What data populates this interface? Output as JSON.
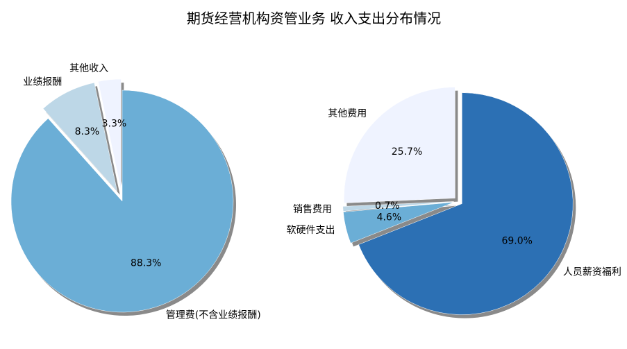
{
  "title": "期货经营机构资管业务 收入支出分布情况",
  "chart_data": [
    {
      "type": "pie",
      "labels": [
        "管理费(不含业绩报酬)",
        "业绩报酬",
        "其他收入"
      ],
      "values": [
        88.3,
        8.3,
        3.3
      ],
      "value_labels": [
        "88.3%",
        "8.3%",
        "3.3%"
      ],
      "colors": [
        "#6baed6",
        "#bdd7e7",
        "#eff3ff"
      ]
    },
    {
      "type": "pie",
      "labels": [
        "人员薪资福利",
        "软硬件支出",
        "销售费用",
        "其他费用"
      ],
      "values": [
        69.0,
        4.6,
        0.7,
        25.7
      ],
      "value_labels": [
        "69.0%",
        "4.6%",
        "0.7%",
        "25.7%"
      ],
      "colors": [
        "#2c70b4",
        "#6baed6",
        "#bdd7e7",
        "#eff3ff"
      ]
    }
  ]
}
